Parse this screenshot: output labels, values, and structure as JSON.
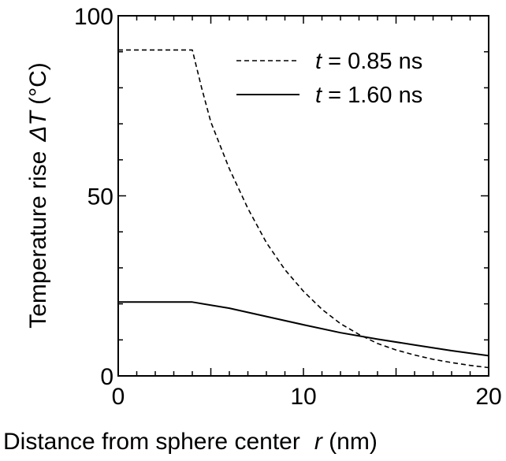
{
  "chart_data": {
    "type": "line",
    "xlabel_text": "Distance from sphere center",
    "xlabel_var": "r",
    "xlabel_unit": " (nm)",
    "ylabel_text": "Temperature rise",
    "ylabel_var": "ΔT",
    "ylabel_unit": " (°C)",
    "xlim": [
      0,
      20
    ],
    "ylim": [
      0,
      100
    ],
    "xticks": [
      0,
      10,
      20
    ],
    "yticks": [
      0,
      50,
      100
    ],
    "grid": false,
    "legend_position": "top-right",
    "series": [
      {
        "name_var": "t",
        "name_rest": " = 0.85 ns",
        "style": "dashed",
        "x": [
          0,
          4,
          4.5,
          5,
          6,
          7,
          8,
          9,
          10,
          11,
          12,
          13,
          14,
          15,
          16,
          17,
          18,
          19,
          20
        ],
        "y": [
          90.5,
          90.5,
          80,
          70.5,
          57.5,
          46.5,
          37,
          29.5,
          23.5,
          18.5,
          14.5,
          11.5,
          9,
          7.2,
          5.8,
          4.6,
          3.7,
          2.9,
          2.3
        ]
      },
      {
        "name_var": "t",
        "name_rest": " = 1.60 ns",
        "style": "solid",
        "x": [
          0,
          4,
          6,
          8,
          10,
          12,
          14,
          16,
          18,
          20
        ],
        "y": [
          20.5,
          20.5,
          18.8,
          16.5,
          14.2,
          12,
          10.2,
          8.6,
          7,
          5.6
        ]
      }
    ]
  }
}
